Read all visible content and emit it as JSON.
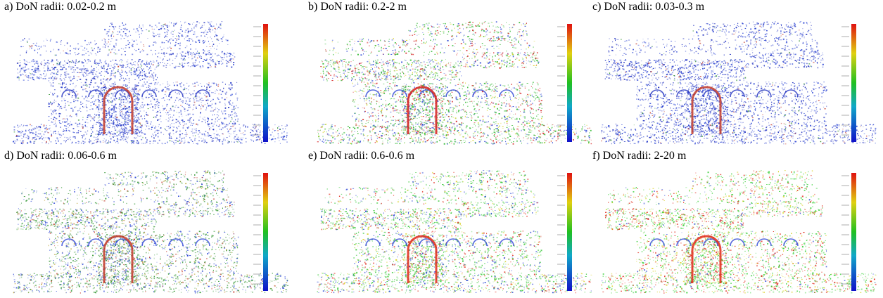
{
  "figure": {
    "panels": [
      {
        "id": "a",
        "caption": "a) DoN radii: 0.02-0.2 m",
        "palette": {
          "primary": "#1f2fbf",
          "secondary": "#2a44d4",
          "accent": "#2e8f2e",
          "hot": "#c23a2a"
        },
        "mix": {
          "blue": 0.86,
          "green": 0.1,
          "red": 0.04
        }
      },
      {
        "id": "b",
        "caption": "b) DoN radii: 0.2-2 m",
        "palette": {
          "primary": "#2a44d4",
          "secondary": "#2fb82f",
          "accent": "#d8d020",
          "hot": "#d42020"
        },
        "mix": {
          "blue": 0.45,
          "green": 0.35,
          "red": 0.2
        }
      },
      {
        "id": "c",
        "caption": "c) DoN radii: 0.03-0.3 m",
        "palette": {
          "primary": "#1f2fbf",
          "secondary": "#2a44d4",
          "accent": "#2e8f2e",
          "hot": "#c23a2a"
        },
        "mix": {
          "blue": 0.88,
          "green": 0.08,
          "red": 0.04
        }
      },
      {
        "id": "d",
        "caption": "d) DoN radii: 0.06-0.6 m",
        "palette": {
          "primary": "#2a44d4",
          "secondary": "#3a9a3a",
          "accent": "#b8a030",
          "hot": "#c23a2a"
        },
        "mix": {
          "blue": 0.6,
          "green": 0.3,
          "red": 0.1
        }
      },
      {
        "id": "e",
        "caption": "e) DoN radii: 0.6-0.6 m",
        "palette": {
          "primary": "#2a44d4",
          "secondary": "#39c839",
          "accent": "#d8d020",
          "hot": "#e02a1a"
        },
        "mix": {
          "blue": 0.4,
          "green": 0.42,
          "red": 0.18
        }
      },
      {
        "id": "f",
        "caption": "f) DoN radii: 2-20 m",
        "palette": {
          "primary": "#2a44d4",
          "secondary": "#39d039",
          "accent": "#d8d020",
          "hot": "#e02a1a"
        },
        "mix": {
          "blue": 0.12,
          "green": 0.6,
          "red": 0.28
        }
      }
    ]
  }
}
